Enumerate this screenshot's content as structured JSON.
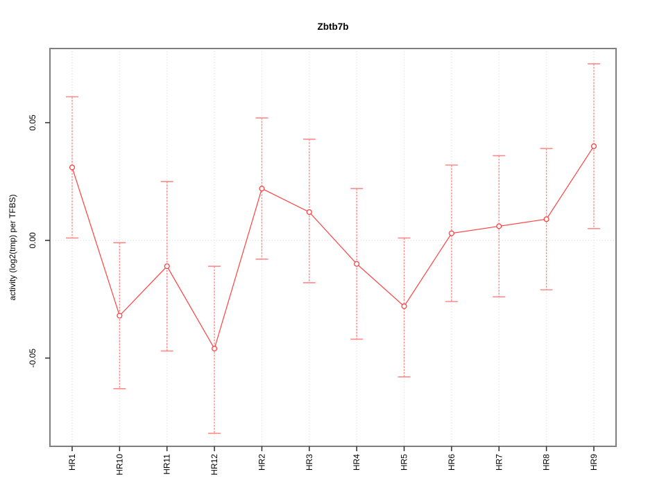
{
  "chart_data": {
    "type": "line",
    "title": "Zbtb7b",
    "xlabel": "",
    "ylabel": "activity (log2(tmp) per TFBS)",
    "categories": [
      "HR1",
      "HR10",
      "HR11",
      "HR12",
      "HR2",
      "HR3",
      "HR4",
      "HR5",
      "HR6",
      "HR7",
      "HR8",
      "HR9"
    ],
    "series": [
      {
        "name": "activity",
        "values": [
          0.031,
          -0.032,
          -0.011,
          -0.046,
          0.022,
          0.012,
          -0.01,
          -0.028,
          0.003,
          0.006,
          0.009,
          0.04
        ],
        "error_high": [
          0.061,
          -0.001,
          0.025,
          -0.011,
          0.052,
          0.043,
          0.022,
          0.001,
          0.032,
          0.036,
          0.039,
          0.075
        ],
        "error_low": [
          0.001,
          -0.063,
          -0.047,
          -0.082,
          -0.008,
          -0.018,
          -0.042,
          -0.058,
          -0.026,
          -0.024,
          -0.021,
          0.005
        ]
      }
    ],
    "yticks": [
      -0.05,
      0,
      0.05
    ],
    "ytick_labels": [
      "-0.05",
      "0.00",
      "0.05"
    ],
    "ylim": [
      -0.0875,
      0.0815
    ],
    "grid": {
      "vertical_at_categories": true,
      "horizontal_at_zero": true,
      "style": "dotted"
    },
    "legend": "none",
    "marker": "open-circle",
    "colors": {
      "line": "#ff4040",
      "marker": "#ff4040",
      "error_bar": "#ff8a8a",
      "grid": "#d9d9d9",
      "box": "#7f7f7f",
      "tick": "#2b2b2b",
      "text": "#000000",
      "background": "#ffffff"
    }
  }
}
